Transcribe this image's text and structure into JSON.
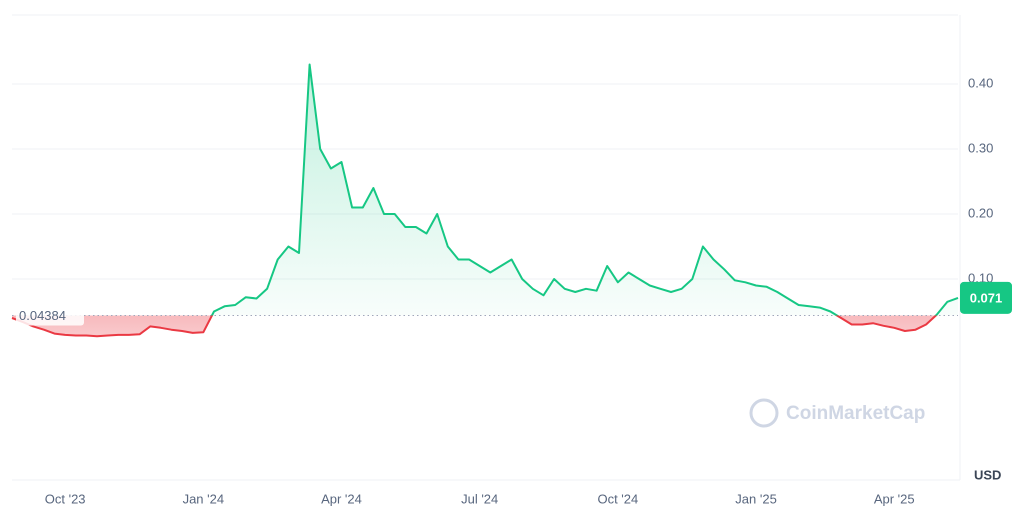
{
  "chart_data": {
    "type": "line",
    "categories": [
      null,
      null,
      null,
      null,
      null,
      "Oct '23",
      null,
      null,
      null,
      null,
      null,
      null,
      null,
      null,
      null,
      null,
      null,
      null,
      "Jan '24",
      null,
      null,
      null,
      null,
      null,
      null,
      null,
      null,
      null,
      null,
      null,
      null,
      "Apr '24",
      null,
      null,
      null,
      null,
      null,
      null,
      null,
      null,
      null,
      null,
      null,
      null,
      "Jul '24",
      null,
      null,
      null,
      null,
      null,
      null,
      null,
      null,
      null,
      null,
      null,
      null,
      "Oct '24",
      null,
      null,
      null,
      null,
      null,
      null,
      null,
      null,
      null,
      null,
      null,
      null,
      "Jan '25",
      null,
      null,
      null,
      null,
      null,
      null,
      null,
      null,
      null,
      null,
      null,
      null,
      "Apr '25",
      null,
      null,
      null,
      null,
      null,
      null
    ],
    "series": [
      {
        "name": "USD",
        "color": "#16c784",
        "below_color": "#ea3943",
        "values": [
          0.04,
          0.034,
          0.027,
          0.022,
          0.016,
          0.014,
          0.013,
          0.013,
          0.012,
          0.013,
          0.014,
          0.014,
          0.015,
          0.027,
          0.025,
          0.022,
          0.02,
          0.017,
          0.018,
          0.05,
          0.058,
          0.06,
          0.072,
          0.07,
          0.085,
          0.13,
          0.15,
          0.14,
          0.43,
          0.3,
          0.27,
          0.28,
          0.21,
          0.21,
          0.24,
          0.2,
          0.2,
          0.18,
          0.18,
          0.17,
          0.2,
          0.15,
          0.13,
          0.13,
          0.12,
          0.11,
          0.12,
          0.13,
          0.1,
          0.085,
          0.075,
          0.1,
          0.085,
          0.08,
          0.085,
          0.082,
          0.12,
          0.095,
          0.11,
          0.1,
          0.09,
          0.085,
          0.08,
          0.085,
          0.1,
          0.15,
          0.13,
          0.115,
          0.098,
          0.095,
          0.09,
          0.088,
          0.08,
          0.07,
          0.06,
          0.058,
          0.056,
          0.05,
          0.04,
          0.03,
          0.03,
          0.032,
          0.028,
          0.025,
          0.02,
          0.022,
          0.03,
          0.045,
          0.065,
          0.071
        ]
      }
    ],
    "baseline": 0.04384,
    "current_price": 0.071,
    "ylim": [
      -0.2,
      0.5
    ],
    "yticks": [
      {
        "value": 0.1,
        "label": "0.10"
      },
      {
        "value": 0.2,
        "label": "0.20"
      },
      {
        "value": 0.3,
        "label": "0.30"
      },
      {
        "value": 0.4,
        "label": "0.40"
      }
    ],
    "grid": true,
    "currency_label": "USD",
    "watermark": "CoinMarketCap"
  }
}
